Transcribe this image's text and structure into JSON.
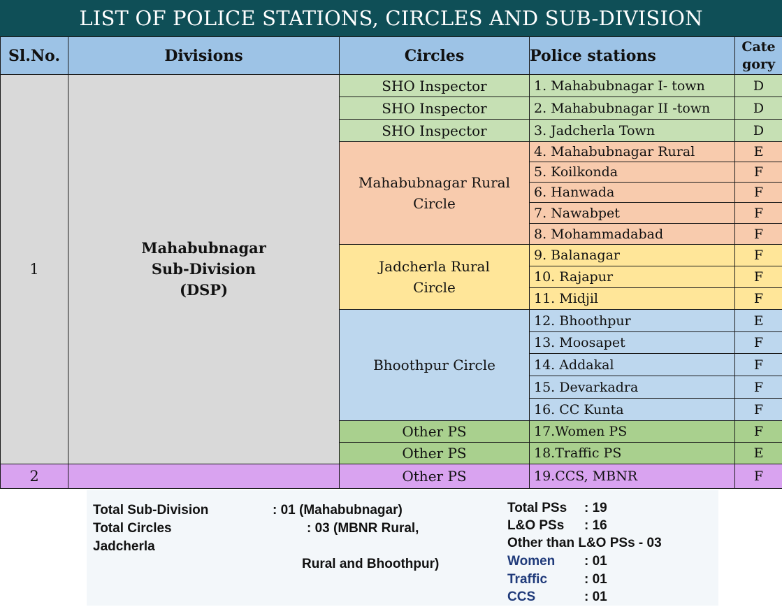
{
  "title": "LIST OF POLICE STATIONS, CIRCLES AND SUB-DIVISION",
  "headers": {
    "sl": "Sl.No.",
    "divisions": "Divisions",
    "circles": "Circles",
    "police_stations": "Police stations",
    "category_line1": "Cate",
    "category_line2": "gory"
  },
  "sections": [
    {
      "sl": "1",
      "division_line1": "Mahabubnagar",
      "division_line2": "Sub-Division",
      "division_line3": "(DSP)"
    },
    {
      "sl": "2",
      "division_line1": ""
    }
  ],
  "circles": {
    "sho1": "SHO Inspector",
    "sho2": "SHO Inspector",
    "sho3": "SHO Inspector",
    "mbnr_rural_line1": "Mahabubnagar Rural",
    "mbnr_rural_line2": "Circle",
    "jadcherla_line1": "Jadcherla Rural",
    "jadcherla_line2": "Circle",
    "bhoothpur": "Bhoothpur Circle",
    "other1": "Other PS",
    "other2": "Other PS",
    "other3": "Other PS"
  },
  "stations": [
    {
      "name": "1. Mahabubnagar  I- town",
      "category": "D"
    },
    {
      "name": "2. Mahabubnagar II -town",
      "category": "D"
    },
    {
      "name": "3. Jadcherla Town",
      "category": "D"
    },
    {
      "name": "4. Mahabubnagar Rural",
      "category": "E"
    },
    {
      "name": "5. Koilkonda",
      "category": "F"
    },
    {
      "name": "6. Hanwada",
      "category": "F"
    },
    {
      "name": "7. Nawabpet",
      "category": "F"
    },
    {
      "name": "8. Mohammadabad",
      "category": "F"
    },
    {
      "name": "9. Balanagar",
      "category": "F"
    },
    {
      "name": "10. Rajapur",
      "category": "F"
    },
    {
      "name": "11. Midjil",
      "category": "F"
    },
    {
      "name": "12. Bhoothpur",
      "category": "E"
    },
    {
      "name": "13. Moosapet",
      "category": "F"
    },
    {
      "name": "14. Addakal",
      "category": "F"
    },
    {
      "name": "15. Devarkadra",
      "category": "F"
    },
    {
      "name": "16. CC Kunta",
      "category": "F"
    },
    {
      "name": "17.Women PS",
      "category": "F"
    },
    {
      "name": "18.Traffic PS",
      "category": "E"
    },
    {
      "name": "19.CCS, MBNR",
      "category": "F"
    }
  ],
  "summary": {
    "left_line1_label": "Total Sub-Division",
    "left_line1_value": ":  01 (Mahabubnagar)",
    "left_line2_label": "Total Circles",
    "left_line2_value": ":  03 (MBNR  Rural,",
    "left_line3": "Jadcherla",
    "left_line4": "Rural and  Bhoothpur)",
    "total_ps_label": "Total PSs",
    "total_ps_value": ":   19",
    "lo_ps_label": "L&O PSs",
    "lo_ps_value": ":   16",
    "other_than_lo": "Other than L&O PSs - 03",
    "women_label": "Women",
    "women_value": ":    01",
    "traffic_label": "Traffic",
    "traffic_value": ":    01",
    "ccs_label": "CCS",
    "ccs_value": ":    01"
  }
}
